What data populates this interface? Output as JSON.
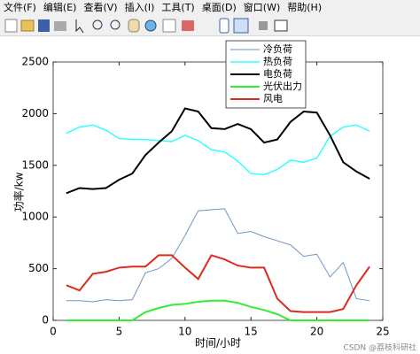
{
  "menu": [
    "文件(F)",
    "编辑(E)",
    "查看(V)",
    "插入(I)",
    "工具(T)",
    "桌面(D)",
    "窗口(W)",
    "帮助(H)"
  ],
  "watermark": "CSDN @荔枝科研社",
  "chart_data": {
    "type": "line",
    "xlabel": "时间/小时",
    "ylabel": "功率/kw",
    "x": [
      1,
      2,
      3,
      4,
      5,
      6,
      7,
      8,
      9,
      10,
      11,
      12,
      13,
      14,
      15,
      16,
      17,
      18,
      19,
      20,
      21,
      22,
      23,
      24
    ],
    "xlim": [
      0,
      25
    ],
    "xticks": [
      0,
      5,
      10,
      15,
      20,
      25
    ],
    "ylim": [
      0,
      2500
    ],
    "yticks": [
      0,
      500,
      1000,
      1500,
      2000,
      2500
    ],
    "legend": "top",
    "series": [
      {
        "name": "冷负荷",
        "color": "#6f95c6",
        "values": [
          190,
          190,
          180,
          200,
          190,
          200,
          460,
          500,
          600,
          820,
          1060,
          1070,
          1080,
          840,
          860,
          810,
          770,
          730,
          620,
          640,
          420,
          560,
          210,
          190
        ]
      },
      {
        "name": "热负荷",
        "color": "#33ffff",
        "values": [
          1810,
          1870,
          1890,
          1840,
          1760,
          1750,
          1750,
          1740,
          1730,
          1790,
          1740,
          1650,
          1630,
          1540,
          1420,
          1410,
          1460,
          1550,
          1530,
          1570,
          1780,
          1870,
          1890,
          1830
        ]
      },
      {
        "name": "电负荷",
        "color": "#000000",
        "values": [
          1230,
          1280,
          1270,
          1280,
          1360,
          1420,
          1600,
          1720,
          1830,
          2050,
          2020,
          1860,
          1850,
          1900,
          1850,
          1720,
          1750,
          1920,
          2020,
          2010,
          1790,
          1530,
          1440,
          1370
        ]
      },
      {
        "name": "光伏出力",
        "color": "#33ee33",
        "values": [
          0,
          0,
          0,
          0,
          0,
          0,
          80,
          120,
          150,
          160,
          180,
          190,
          190,
          170,
          130,
          100,
          60,
          0,
          0,
          0,
          0,
          0,
          0,
          0
        ]
      },
      {
        "name": "风电",
        "color": "#dd2a1e",
        "values": [
          340,
          290,
          450,
          470,
          510,
          520,
          520,
          630,
          630,
          510,
          400,
          630,
          590,
          530,
          510,
          510,
          210,
          90,
          80,
          80,
          80,
          110,
          340,
          520
        ]
      }
    ]
  }
}
